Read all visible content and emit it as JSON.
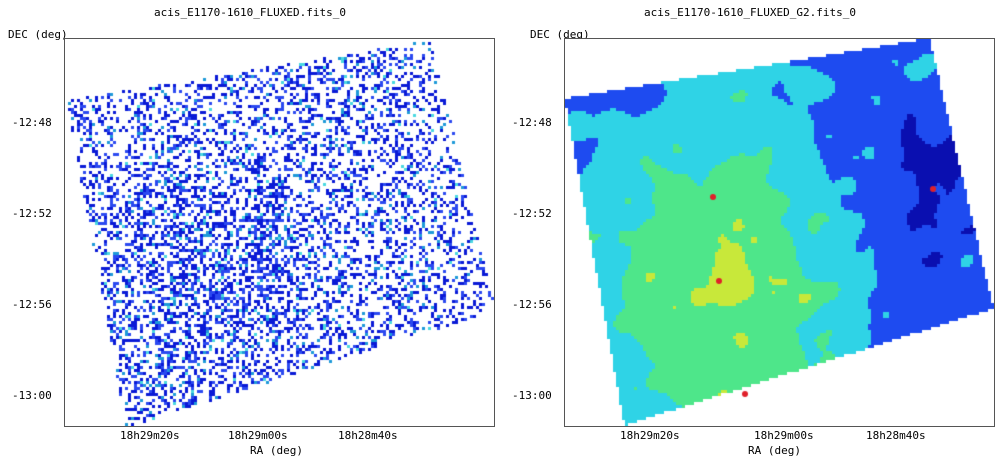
{
  "chart_data": [
    {
      "type": "heatmap",
      "title": "acis_E1170-1610_FLUXED.fits_0",
      "xlabel": "RA (deg)",
      "ylabel": "DEC (deg)",
      "xticks": [
        "18h29m20s",
        "18h29m00s",
        "18h28m40s"
      ],
      "yticks": [
        "-12:48",
        "-12:52",
        "-12:56",
        "-13:00"
      ],
      "colors": [
        "#0a1ad6",
        "#2b49f0",
        "#1e9ad8",
        "#4ad8e0"
      ]
    },
    {
      "type": "heatmap",
      "title": "acis_E1170-1610_FLUXED_G2.fits_0",
      "xlabel": "RA (deg)",
      "ylabel": "DEC (deg)",
      "xticks": [
        "18h29m20s",
        "18h29m00s",
        "18h28m40s"
      ],
      "yticks": [
        "-12:48",
        "-12:52",
        "-12:56",
        "-13:00"
      ],
      "colors": [
        "#0a0fb0",
        "#1e4bf0",
        "#2fd3e6",
        "#4ee68a",
        "#c8e83a",
        "#f2d21e",
        "#e0202a"
      ]
    }
  ]
}
